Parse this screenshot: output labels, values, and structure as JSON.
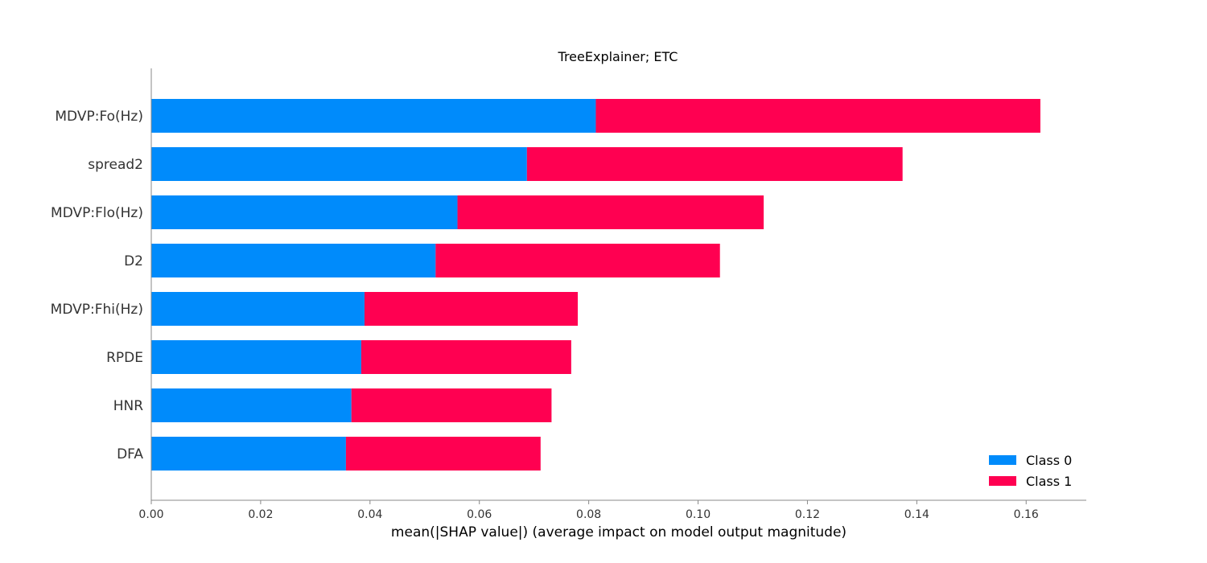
{
  "chart_data": {
    "type": "bar",
    "orientation": "horizontal",
    "stacked": true,
    "title": "TreeExplainer; ETC",
    "xlabel": "mean(|SHAP value|) (average impact on model output magnitude)",
    "ylabel": "",
    "xlim": [
      0,
      0.171
    ],
    "xticks": [
      "0.00",
      "0.02",
      "0.04",
      "0.06",
      "0.08",
      "0.10",
      "0.12",
      "0.14",
      "0.16"
    ],
    "categories": [
      "MDVP:Fo(Hz)",
      "spread2",
      "MDVP:Flo(Hz)",
      "D2",
      "MDVP:Fhi(Hz)",
      "RPDE",
      "HNR",
      "DFA"
    ],
    "series": [
      {
        "name": "Class 0",
        "color": "#008bfb",
        "values": [
          0.0813,
          0.0687,
          0.056,
          0.052,
          0.039,
          0.0384,
          0.0366,
          0.0356
        ]
      },
      {
        "name": "Class 1",
        "color": "#ff0051",
        "values": [
          0.0813,
          0.0687,
          0.056,
          0.052,
          0.039,
          0.0384,
          0.0366,
          0.0356
        ]
      }
    ],
    "grid": false,
    "legend_position": "lower-right"
  }
}
